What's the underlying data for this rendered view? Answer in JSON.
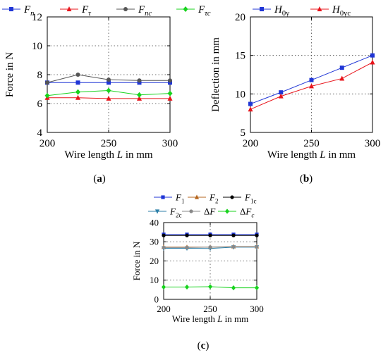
{
  "figure": {
    "panels": [
      {
        "caption": "(a)",
        "chart_data": {
          "type": "line",
          "x": [
            200,
            225,
            250,
            275,
            300
          ],
          "xticks": [
            "200",
            "250",
            "300"
          ],
          "yticks": [
            "4",
            "6",
            "8",
            "10",
            "12"
          ],
          "xlim": [
            200,
            300
          ],
          "ylim": [
            4,
            12
          ],
          "xlabel_parts": [
            "Wire length ",
            "L",
            " in mm"
          ],
          "ylabel": "Force in N",
          "grid": "dotted",
          "legend_position": "top",
          "series": [
            {
              "name": "F",
              "sub": "n",
              "color": "#1f35d6",
              "marker": "square",
              "values": [
                7.45,
                7.45,
                7.45,
                7.45,
                7.45
              ]
            },
            {
              "name": "F",
              "sub": "τ",
              "color": "#e8141b",
              "marker": "triangle",
              "values": [
                6.4,
                6.4,
                6.35,
                6.35,
                6.35
              ]
            },
            {
              "name": "F",
              "sub": "nc",
              "color": "#555555",
              "marker": "circle",
              "values": [
                7.45,
                8.0,
                7.65,
                7.6,
                7.6
              ]
            },
            {
              "name": "F",
              "sub": "τc",
              "color": "#18d31e",
              "marker": "diamond",
              "values": [
                6.55,
                6.8,
                6.9,
                6.6,
                6.7
              ]
            }
          ]
        }
      },
      {
        "caption": "(b)",
        "chart_data": {
          "type": "line",
          "x": [
            200,
            225,
            250,
            275,
            300
          ],
          "xticks": [
            "200",
            "250",
            "300"
          ],
          "yticks": [
            "5",
            "10",
            "15",
            "20"
          ],
          "xlim": [
            200,
            300
          ],
          "ylim": [
            5,
            20
          ],
          "xlabel_parts": [
            "Wire length ",
            "L",
            " in mm"
          ],
          "ylabel": "Deflection in mm",
          "grid": "dotted",
          "legend_position": "top",
          "series": [
            {
              "name": "H",
              "sub": "0y",
              "color": "#1f35d6",
              "marker": "square",
              "values": [
                8.7,
                10.2,
                11.8,
                13.4,
                15.0
              ]
            },
            {
              "name": "H",
              "sub": "0yc",
              "color": "#e8141b",
              "marker": "triangle",
              "values": [
                8.0,
                9.7,
                11.0,
                12.0,
                14.1
              ]
            }
          ]
        }
      },
      {
        "caption": "(c)",
        "chart_data": {
          "type": "line",
          "x": [
            200,
            225,
            250,
            275,
            300
          ],
          "xticks": [
            "200",
            "250",
            "300"
          ],
          "yticks": [
            "0",
            "10",
            "20",
            "30",
            "40"
          ],
          "xlim": [
            200,
            300
          ],
          "ylim": [
            0,
            40
          ],
          "xlabel_parts": [
            "Wire length ",
            "L",
            " in mm"
          ],
          "ylabel": "Force in N",
          "grid": "dotted",
          "legend_position": "top",
          "series": [
            {
              "name": "F",
              "sub": "1",
              "color": "#1f35d6",
              "marker": "square",
              "values": [
                33.8,
                33.8,
                33.8,
                33.8,
                33.8
              ]
            },
            {
              "name": "F",
              "sub": "2",
              "color": "#b5651d",
              "marker": "triangle",
              "values": [
                27.2,
                27.2,
                27.2,
                27.5,
                27.5
              ]
            },
            {
              "name": "F",
              "sub": "1c",
              "color": "#000000",
              "marker": "circle",
              "values": [
                33.3,
                33.3,
                33.3,
                33.3,
                33.3
              ]
            },
            {
              "name": "F",
              "sub": "2c",
              "color": "#2c7fa8",
              "marker": "triangle-down",
              "values": [
                26.6,
                26.6,
                26.5,
                27.2,
                27.2
              ]
            },
            {
              "name": "ΔF",
              "sub": "",
              "color": "#888888",
              "marker": "circle",
              "values": [
                27.0,
                27.0,
                27.2,
                27.4,
                27.4
              ]
            },
            {
              "name": "ΔF",
              "sub": "c",
              "color": "#18d31e",
              "marker": "diamond",
              "values": [
                6.4,
                6.4,
                6.6,
                6.0,
                6.0
              ]
            }
          ]
        }
      }
    ]
  }
}
